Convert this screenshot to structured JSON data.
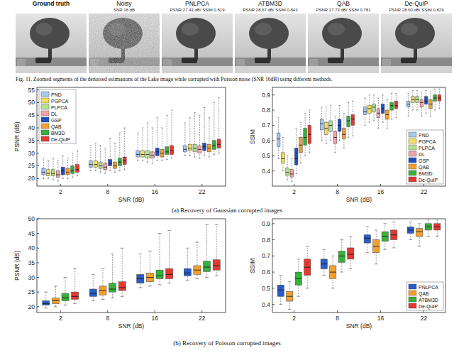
{
  "images": [
    {
      "title": "Ground truth"
    },
    {
      "title": "Noisy",
      "subtitle": "SNR 16 dB"
    },
    {
      "title": "PNLPCA",
      "subtitle": "PSNR 27.41 dB/ SSIM 0.819"
    },
    {
      "title": "ATBM3D",
      "subtitle": "PSNR 28.67 dB/ SSIM 0.843"
    },
    {
      "title": "QAB",
      "subtitle": "PSNR 27.73 dB/ SSIM 0.781"
    },
    {
      "title": "De-QuIP",
      "subtitle": "PSNR 28.60 dB/ SSIM 0.829"
    }
  ],
  "captions": {
    "figure": "Fig. 11.  Zoomed segments of the denoised estimations of the Lake image while corrupted with Poisson noise (SNR 16dB) using different methods.",
    "a": "(a) Recovery of Gaussian corrupted images",
    "b": "(b) Recovery of Poisson corrupted images"
  },
  "chart_data": [
    {
      "type": "box",
      "xlabel": "SNR (dB)",
      "ylabel": "PSNR (dB)",
      "categories": [
        "2",
        "8",
        "16",
        "22"
      ],
      "ylim": [
        17,
        56
      ],
      "yticks": [
        20,
        25,
        30,
        35,
        40,
        45,
        50,
        55
      ],
      "legend": "upper left",
      "series": [
        {
          "name": "PND",
          "color": "#a6c8ec",
          "values": [
            [
              20,
              21.5,
              22.5,
              24,
              28
            ],
            [
              23,
              24.5,
              25.5,
              27,
              33
            ],
            [
              27,
              28.5,
              29.5,
              31,
              38
            ],
            [
              29,
              30.5,
              31.5,
              33,
              42
            ]
          ]
        },
        {
          "name": "PGPCA",
          "color": "#f2de5c",
          "values": [
            [
              20,
              21,
              22,
              23.5,
              27
            ],
            [
              23,
              24.5,
              25.5,
              27,
              34
            ],
            [
              27,
              28.5,
              29.5,
              31,
              40
            ],
            [
              29,
              31,
              32,
              33.5,
              44
            ]
          ]
        },
        {
          "name": "PLPCA",
          "color": "#b5e08e",
          "values": [
            [
              19.5,
              21,
              22,
              23.5,
              28
            ],
            [
              22.5,
              24,
              25,
              26.5,
              33
            ],
            [
              26.5,
              28,
              29.5,
              31,
              42
            ],
            [
              28.5,
              30.5,
              32,
              33.5,
              46
            ]
          ]
        },
        {
          "name": "DL",
          "color": "#f2a4a8",
          "values": [
            [
              19,
              20.5,
              21.5,
              23,
              27
            ],
            [
              22,
              23.5,
              24.5,
              26,
              32
            ],
            [
              26,
              28,
              29,
              30.5,
              40
            ],
            [
              28,
              30,
              31.5,
              33,
              45
            ]
          ]
        },
        {
          "name": "GSP",
          "color": "#1f4fbf",
          "values": [
            [
              20,
              21.5,
              23,
              24.5,
              29
            ],
            [
              23,
              25,
              26,
              27.5,
              36
            ],
            [
              27,
              29,
              30.5,
              32,
              44
            ],
            [
              29,
              31,
              32.5,
              34,
              48
            ]
          ]
        },
        {
          "name": "QAB",
          "color": "#f0a030",
          "values": [
            [
              20,
              21.5,
              22.5,
              24,
              28
            ],
            [
              22.5,
              24,
              25,
              26.5,
              34
            ],
            [
              27,
              28.5,
              30,
              31.5,
              40
            ],
            [
              28.5,
              30.5,
              32,
              33.5,
              44
            ]
          ]
        },
        {
          "name": "BM3D",
          "color": "#36b13a",
          "values": [
            [
              20.5,
              22,
              23,
              25,
              30
            ],
            [
              23,
              25,
              26.5,
              28,
              38
            ],
            [
              27.5,
              29.5,
              30.5,
              32.5,
              45
            ],
            [
              29.5,
              31.5,
              33,
              35,
              50
            ]
          ]
        },
        {
          "name": "De-QuIP",
          "color": "#e23a32",
          "values": [
            [
              21,
              22.5,
              23.5,
              25.5,
              31
            ],
            [
              23.5,
              25.5,
              27,
              28.5,
              40
            ],
            [
              28,
              29.5,
              31,
              33,
              47
            ],
            [
              30,
              32,
              33.5,
              35.5,
              52
            ]
          ]
        }
      ]
    },
    {
      "type": "box",
      "xlabel": "SNR (dB)",
      "ylabel": "SSIM",
      "categories": [
        "2",
        "8",
        "16",
        "22"
      ],
      "ylim": [
        0.3,
        0.95
      ],
      "yticks": [
        0.4,
        0.5,
        0.6,
        0.7,
        0.8,
        0.9
      ],
      "legend": "lower right",
      "series": [
        {
          "name": "PND",
          "color": "#a6c8ec",
          "values": [
            [
              0.48,
              0.56,
              0.61,
              0.65,
              0.75
            ],
            [
              0.6,
              0.67,
              0.71,
              0.74,
              0.82
            ],
            [
              0.7,
              0.77,
              0.79,
              0.82,
              0.88
            ],
            [
              0.76,
              0.82,
              0.84,
              0.86,
              0.91
            ]
          ]
        },
        {
          "name": "PGPCA",
          "color": "#f2de5c",
          "values": [
            [
              0.4,
              0.45,
              0.48,
              0.52,
              0.62
            ],
            [
              0.58,
              0.64,
              0.68,
              0.72,
              0.82
            ],
            [
              0.72,
              0.78,
              0.81,
              0.83,
              0.9
            ],
            [
              0.8,
              0.85,
              0.87,
              0.89,
              0.93
            ]
          ]
        },
        {
          "name": "PLPCA",
          "color": "#b5e08e",
          "values": [
            [
              0.34,
              0.37,
              0.39,
              0.42,
              0.5
            ],
            [
              0.6,
              0.66,
              0.7,
              0.73,
              0.83
            ],
            [
              0.73,
              0.79,
              0.82,
              0.84,
              0.9
            ],
            [
              0.8,
              0.85,
              0.87,
              0.89,
              0.93
            ]
          ]
        },
        {
          "name": "DL",
          "color": "#f2a4a8",
          "values": [
            [
              0.33,
              0.36,
              0.38,
              0.41,
              0.48
            ],
            [
              0.52,
              0.58,
              0.62,
              0.66,
              0.76
            ],
            [
              0.68,
              0.75,
              0.78,
              0.81,
              0.88
            ],
            [
              0.76,
              0.82,
              0.85,
              0.87,
              0.92
            ]
          ]
        },
        {
          "name": "GSP",
          "color": "#1f4fbf",
          "values": [
            [
              0.38,
              0.44,
              0.48,
              0.55,
              0.68
            ],
            [
              0.6,
              0.66,
              0.7,
              0.74,
              0.83
            ],
            [
              0.72,
              0.78,
              0.81,
              0.84,
              0.9
            ],
            [
              0.78,
              0.84,
              0.86,
              0.89,
              0.93
            ]
          ]
        },
        {
          "name": "QAB",
          "color": "#f0a030",
          "values": [
            [
              0.45,
              0.52,
              0.57,
              0.62,
              0.72
            ],
            [
              0.55,
              0.61,
              0.64,
              0.68,
              0.78
            ],
            [
              0.68,
              0.74,
              0.77,
              0.8,
              0.87
            ],
            [
              0.76,
              0.81,
              0.84,
              0.87,
              0.92
            ]
          ]
        },
        {
          "name": "BM3D",
          "color": "#36b13a",
          "values": [
            [
              0.5,
              0.57,
              0.62,
              0.68,
              0.78
            ],
            [
              0.62,
              0.69,
              0.73,
              0.76,
              0.85
            ],
            [
              0.74,
              0.8,
              0.83,
              0.85,
              0.91
            ],
            [
              0.8,
              0.86,
              0.88,
              0.9,
              0.94
            ]
          ]
        },
        {
          "name": "De-QuIP",
          "color": "#e23a32",
          "values": [
            [
              0.52,
              0.58,
              0.64,
              0.7,
              0.8
            ],
            [
              0.63,
              0.7,
              0.74,
              0.77,
              0.86
            ],
            [
              0.75,
              0.81,
              0.83,
              0.86,
              0.91
            ],
            [
              0.81,
              0.86,
              0.88,
              0.9,
              0.94
            ]
          ]
        }
      ]
    },
    {
      "type": "box",
      "xlabel": "SNR (dB)",
      "ylabel": "PSNR (dB)",
      "categories": [
        "2",
        "8",
        "16",
        "22"
      ],
      "ylim": [
        18,
        50
      ],
      "yticks": [
        20,
        25,
        30,
        35,
        40,
        45,
        50
      ],
      "series": [
        {
          "name": "PNLPCA",
          "color": "#2a5cc8",
          "values": [
            [
              19.5,
              20.5,
              21,
              22,
              25
            ],
            [
              22,
              23.5,
              24.5,
              26,
              31
            ],
            [
              26.5,
              28,
              29.5,
              31,
              38
            ],
            [
              29,
              30.5,
              31.5,
              33,
              40
            ]
          ]
        },
        {
          "name": "QAB",
          "color": "#f0a030",
          "values": [
            [
              20,
              21,
              22,
              23,
              27
            ],
            [
              22.5,
              24,
              25.5,
              27,
              33
            ],
            [
              27,
              28.5,
              30,
              31.5,
              39
            ],
            [
              29.5,
              31,
              32.5,
              34,
              42
            ]
          ]
        },
        {
          "name": "ATBM3D",
          "color": "#36b13a",
          "values": [
            [
              20.5,
              22,
              23,
              24.5,
              30
            ],
            [
              23,
              25,
              26,
              28,
              38
            ],
            [
              27.5,
              29.5,
              30.5,
              32.5,
              45
            ],
            [
              30,
              32,
              33.5,
              35.5,
              48
            ]
          ]
        },
        {
          "name": "De-QuIP",
          "color": "#e23a32",
          "values": [
            [
              21,
              22.5,
              23.5,
              25,
              33
            ],
            [
              23.5,
              25.5,
              26.5,
              28.5,
              40
            ],
            [
              28,
              29.5,
              31,
              33,
              46
            ],
            [
              30.5,
              32.5,
              34,
              36,
              48
            ]
          ]
        }
      ]
    },
    {
      "type": "box",
      "xlabel": "SNR (dB)",
      "ylabel": "SSIM",
      "categories": [
        "2",
        "8",
        "16",
        "22"
      ],
      "ylim": [
        0.35,
        0.93
      ],
      "yticks": [
        0.4,
        0.5,
        0.6,
        0.7,
        0.8,
        0.9
      ],
      "legend": "lower right",
      "series": [
        {
          "name": "PNLPCA",
          "color": "#2a5cc8",
          "values": [
            [
              0.4,
              0.45,
              0.49,
              0.52,
              0.58
            ],
            [
              0.58,
              0.62,
              0.65,
              0.68,
              0.74
            ],
            [
              0.72,
              0.78,
              0.81,
              0.83,
              0.88
            ],
            [
              0.8,
              0.84,
              0.86,
              0.88,
              0.91
            ]
          ]
        },
        {
          "name": "QAB",
          "color": "#f0a030",
          "values": [
            [
              0.37,
              0.42,
              0.45,
              0.48,
              0.54
            ],
            [
              0.5,
              0.56,
              0.6,
              0.64,
              0.7
            ],
            [
              0.65,
              0.72,
              0.76,
              0.8,
              0.86
            ],
            [
              0.76,
              0.82,
              0.85,
              0.87,
              0.9
            ]
          ]
        },
        {
          "name": "ATBM3D",
          "color": "#36b13a",
          "values": [
            [
              0.45,
              0.52,
              0.56,
              0.6,
              0.68
            ],
            [
              0.6,
              0.66,
              0.7,
              0.73,
              0.8
            ],
            [
              0.74,
              0.79,
              0.82,
              0.85,
              0.9
            ],
            [
              0.82,
              0.86,
              0.88,
              0.9,
              0.93
            ]
          ]
        },
        {
          "name": "De-QuIP",
          "color": "#e23a32",
          "values": [
            [
              0.5,
              0.58,
              0.63,
              0.68,
              0.76
            ],
            [
              0.62,
              0.68,
              0.71,
              0.75,
              0.82
            ],
            [
              0.75,
              0.8,
              0.83,
              0.86,
              0.91
            ],
            [
              0.82,
              0.86,
              0.88,
              0.9,
              0.93
            ]
          ]
        }
      ]
    }
  ]
}
